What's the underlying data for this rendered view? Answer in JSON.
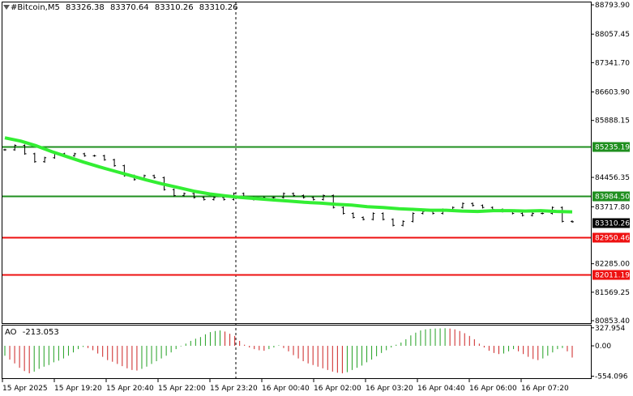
{
  "header": {
    "symbol": "#Bitcoin,M5",
    "open": "83326.38",
    "high": "83370.64",
    "low": "83310.26",
    "close": "83310.26"
  },
  "ao_panel": {
    "label": "AO",
    "value": "-213.053",
    "ticks": [
      {
        "label": "327.954",
        "value": 327.954
      },
      {
        "label": "0.00",
        "value": 0
      },
      {
        "label": "-554.096",
        "value": -554.096
      }
    ]
  },
  "colors": {
    "ma": "#33ee33",
    "resistance": "#1f8f1f",
    "support": "#ee1111",
    "current_price": "#000000",
    "ao_up": "#22a022",
    "ao_down": "#cc2222"
  },
  "chart_data": {
    "type": "line",
    "ylim": [
      80853.4,
      88793.9
    ],
    "price_ticks": [
      "88793.90",
      "88057.45",
      "87341.70",
      "86603.90",
      "85888.15",
      "85235.19",
      "84456.35",
      "83984.50",
      "83717.80",
      "83310.26",
      "82950.46",
      "82285.00",
      "82011.19",
      "81569.25",
      "80853.40"
    ],
    "time_labels": [
      "15 Apr 2025",
      "15 Apr 19:20",
      "15 Apr 20:40",
      "15 Apr 22:00",
      "15 Apr 23:20",
      "16 Apr 00:40",
      "16 Apr 02:00",
      "16 Apr 03:20",
      "16 Apr 04:40",
      "16 Apr 06:00",
      "16 Apr 07:20"
    ],
    "levels": [
      {
        "label": "85235.19",
        "value": 85235.19,
        "kind": "resistance"
      },
      {
        "label": "83984.50",
        "value": 83984.5,
        "kind": "resistance"
      },
      {
        "label": "83310.26",
        "value": 83310.26,
        "kind": "current"
      },
      {
        "label": "82950.46",
        "value": 82950.46,
        "kind": "support"
      },
      {
        "label": "82011.19",
        "value": 82011.19,
        "kind": "support"
      }
    ],
    "price_series": [
      85150,
      85260,
      85050,
      84850,
      84950,
      85050,
      85000,
      85050,
      85000,
      85000,
      84900,
      84750,
      84500,
      84400,
      84500,
      84450,
      84150,
      84000,
      84050,
      83950,
      83900,
      83950,
      83900,
      84050,
      83950,
      83900,
      83950,
      83950,
      84050,
      84000,
      83950,
      83900,
      84000,
      83700,
      83550,
      83450,
      83400,
      83550,
      83400,
      83250,
      83350,
      83550,
      83600,
      83550,
      83650,
      83700,
      83800,
      83750,
      83700,
      83650,
      83600,
      83550,
      83500,
      83550,
      83550,
      83700,
      83350,
      83340
    ],
    "ma_series": [
      85450,
      85370,
      85250,
      85100,
      84970,
      84840,
      84720,
      84610,
      84500,
      84390,
      84290,
      84200,
      84110,
      84040,
      83990,
      83950,
      83920,
      83890,
      83860,
      83830,
      83810,
      83780,
      83760,
      83720,
      83700,
      83670,
      83650,
      83630,
      83630,
      83610,
      83600,
      83620,
      83620,
      83610,
      83620,
      83600,
      83590
    ],
    "ao_series": [
      -180,
      -250,
      -320,
      -400,
      -460,
      -500,
      -470,
      -420,
      -380,
      -350,
      -300,
      -270,
      -230,
      -180,
      -120,
      -60,
      -20,
      -40,
      -80,
      -140,
      -200,
      -260,
      -290,
      -330,
      -370,
      -410,
      -440,
      -450,
      -420,
      -380,
      -330,
      -280,
      -230,
      -180,
      -120,
      -60,
      -10,
      40,
      90,
      130,
      160,
      210,
      250,
      270,
      280,
      260,
      220,
      180,
      90,
      20,
      -30,
      -60,
      -80,
      -90,
      -60,
      -30,
      10,
      -40,
      -100,
      -170,
      -230,
      -280,
      -320,
      -350,
      -380,
      -410,
      -440,
      -470,
      -490,
      -500,
      -480,
      -440,
      -400,
      -360,
      -300,
      -250,
      -190,
      -130,
      -80,
      -30,
      20,
      60,
      120,
      190,
      240,
      280,
      300,
      310,
      315,
      318,
      320,
      315,
      300,
      270,
      230,
      180,
      120,
      40,
      -30,
      -90,
      -130,
      -150,
      -140,
      -100,
      -60,
      -100,
      -150,
      -200,
      -240,
      -260,
      -230,
      -180,
      -120,
      -60,
      -40,
      -100,
      -213
    ]
  }
}
